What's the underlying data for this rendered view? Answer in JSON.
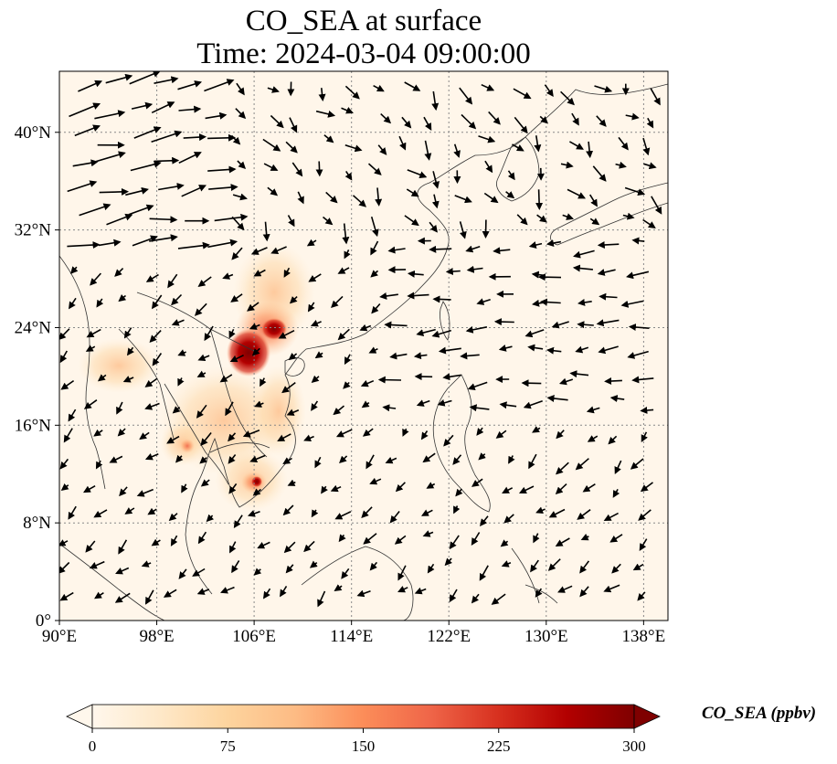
{
  "title": {
    "line1": "CO_SEA at surface",
    "line2": "Time: 2024-03-04 09:00:00"
  },
  "axes": {
    "lon_labels": [
      "90°E",
      "98°E",
      "106°E",
      "114°E",
      "122°E",
      "130°E",
      "138°E"
    ],
    "lon_values": [
      90,
      98,
      106,
      114,
      122,
      130,
      138
    ],
    "lat_labels": [
      "0°",
      "8°N",
      "16°N",
      "24°N",
      "32°N",
      "40°N"
    ],
    "lat_values": [
      0,
      8,
      16,
      24,
      32,
      40
    ],
    "lon_range": [
      90,
      140
    ],
    "lat_range": [
      0,
      45
    ],
    "gridlines": "dotted"
  },
  "colorbar": {
    "label": "CO_SEA (ppbv)",
    "ticks": [
      "0",
      "75",
      "150",
      "225",
      "300"
    ],
    "range": [
      0,
      300
    ],
    "extend": "both",
    "colormap": "OrRd",
    "colors": [
      "#fff7ec",
      "#fee8c8",
      "#fdd49e",
      "#fdbb84",
      "#fc8d59",
      "#ef6548",
      "#d7301f",
      "#b30000",
      "#7f0000"
    ]
  },
  "colors": {
    "background": "#fff6ea",
    "coastline": "#333333",
    "grid": "#888888",
    "arrow": "#000000"
  }
}
